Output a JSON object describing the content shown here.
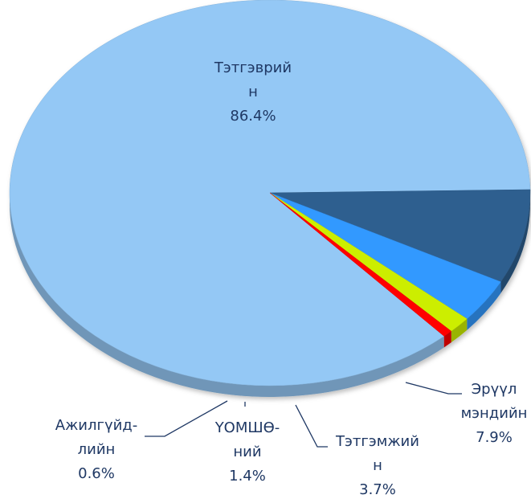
{
  "chart_data": {
    "type": "pie3d",
    "categories": [
      "Тэтгэврий\nн",
      "Эрүүл\nмэндийн",
      "Тэтгэмжий\nн",
      "ҮОМШӨ-\nний",
      "Ажилгүйд-\nлийн"
    ],
    "values": [
      86.4,
      7.9,
      3.7,
      1.4,
      0.6
    ],
    "value_labels": [
      "86.4%",
      "7.9%",
      "3.7%",
      "1.4%",
      "0.6%"
    ],
    "colors": [
      "#94c8f5",
      "#2f5f8f",
      "#3399ff",
      "#ccee00",
      "#ff0000"
    ]
  }
}
